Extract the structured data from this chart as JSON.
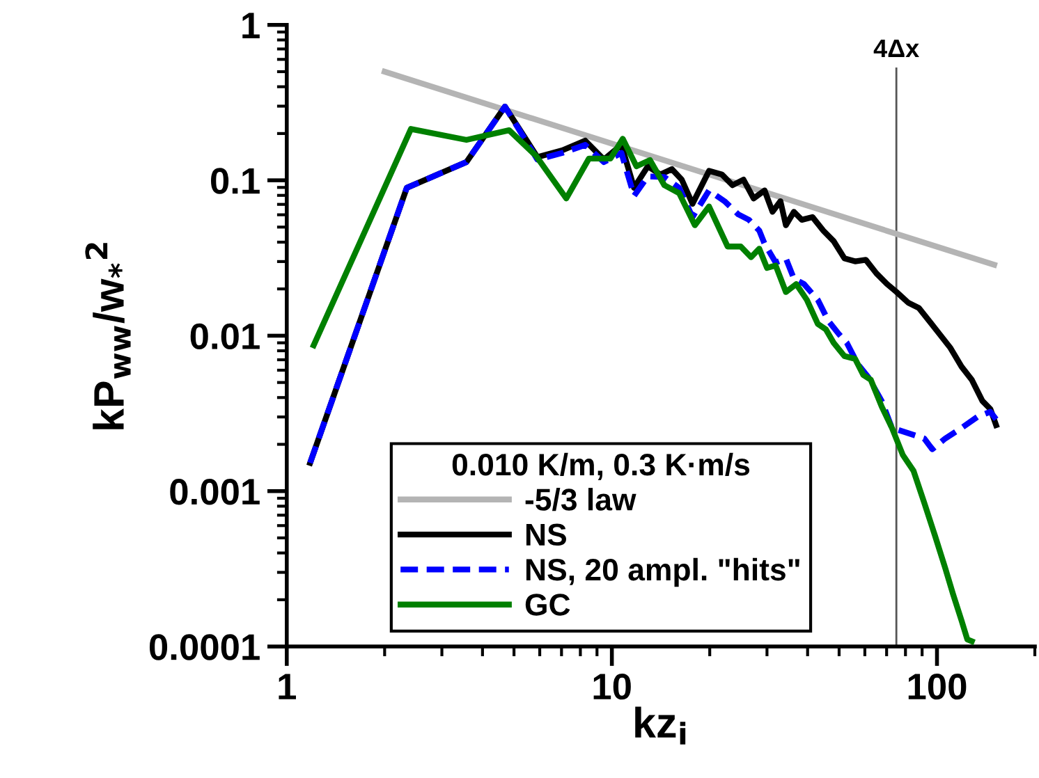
{
  "chart_data": {
    "type": "line",
    "xlabel": "kz$_{i}$",
    "ylabel": "kP$_{ww}$/w$_{*}$$^{2}$",
    "log": "xy",
    "xlim": [
      1,
      200
    ],
    "xticks": [
      1,
      10,
      100
    ],
    "ylim": [
      0.0001,
      1
    ],
    "yticks": [
      0.0001,
      0.001,
      0.01,
      0.1,
      1
    ],
    "grid": false,
    "legend": "bottom",
    "legend_title": "0.010 K/m, 0.3 K·m/s",
    "marker": "none",
    "ref_lines": [
      {
        "axis": "x",
        "value": 75,
        "label": "4Δx",
        "color": "#555555",
        "line_style": "solid"
      }
    ],
    "series": [
      {
        "name": "-5/3 law",
        "color": "#b4b4b4",
        "line_style": "solid",
        "x": [
          2,
          150
        ],
        "values": [
          0.5,
          0.0286
        ]
      },
      {
        "name": "NS",
        "color": "#000000",
        "line_style": "solid",
        "x": [
          1.18,
          2.34,
          3.57,
          4.69,
          5.9,
          7.04,
          8.28,
          9.45,
          10.7,
          11.7,
          12.9,
          14.1,
          15.3,
          16.4,
          17.7,
          19.9,
          21.8,
          23.5,
          25.4,
          27.3,
          29.5,
          31.2,
          33.0,
          34.3,
          36.3,
          38.4,
          41.4,
          44.7,
          48.1,
          51.9,
          56.0,
          60.4,
          65.1,
          70.2,
          75.1,
          81.6,
          87.9,
          94.8,
          102,
          110,
          119,
          128,
          138,
          146,
          152
        ],
        "values": [
          0.00152,
          0.0895,
          0.131,
          0.298,
          0.141,
          0.156,
          0.18,
          0.136,
          0.169,
          0.0895,
          0.123,
          0.109,
          0.118,
          0.101,
          0.0706,
          0.115,
          0.109,
          0.093,
          0.101,
          0.0764,
          0.086,
          0.0627,
          0.0734,
          0.0514,
          0.0627,
          0.0557,
          0.058,
          0.0475,
          0.0406,
          0.0315,
          0.0301,
          0.0308,
          0.0252,
          0.0215,
          0.0191,
          0.0163,
          0.0151,
          0.0124,
          0.0102,
          0.00834,
          0.00632,
          0.0052,
          0.0038,
          0.00337,
          0.00266
        ]
      },
      {
        "name": "NS, 20 ampl. \"hits\"",
        "color": "#0000ff",
        "line_style": "dashed",
        "x": [
          1.18,
          2.34,
          3.57,
          4.69,
          5.9,
          7.04,
          8.28,
          9.45,
          10.7,
          11.7,
          12.9,
          14.5,
          16.1,
          17.7,
          19.9,
          22.2,
          24.5,
          26.4,
          28.4,
          29.5,
          31.9,
          34.3,
          36.3,
          39,
          43,
          46.4,
          50,
          52.8,
          57,
          61.5,
          67.6,
          72.7,
          81.6,
          91.4,
          96.7,
          106,
          119,
          133,
          146,
          152
        ],
        "values": [
          0.00152,
          0.0895,
          0.131,
          0.298,
          0.136,
          0.15,
          0.169,
          0.131,
          0.15,
          0.0794,
          0.106,
          0.105,
          0.0895,
          0.058,
          0.086,
          0.0734,
          0.0603,
          0.0557,
          0.0475,
          0.039,
          0.0296,
          0.0314,
          0.0233,
          0.0215,
          0.017,
          0.0124,
          0.0102,
          0.009,
          0.0066,
          0.0054,
          0.0038,
          0.00255,
          0.00236,
          0.00218,
          0.00186,
          0.00218,
          0.00255,
          0.003,
          0.00324,
          0.0029
        ]
      },
      {
        "name": "GC",
        "color": "#008000",
        "line_style": "solid",
        "x": [
          1.21,
          2.41,
          3.57,
          4.83,
          5.84,
          7.24,
          8.5,
          9.9,
          10.8,
          11.9,
          13.1,
          14.5,
          16.1,
          18.0,
          19.9,
          22.7,
          24.9,
          26.8,
          28.4,
          30,
          31.9,
          34.3,
          36.9,
          39.8,
          43,
          45.5,
          48.1,
          51.9,
          56,
          59.3,
          62.6,
          67.6,
          72.7,
          78.5,
          84.7,
          91.4,
          98.5,
          106,
          112,
          119,
          124,
          128
        ],
        "values": [
          0.00867,
          0.214,
          0.182,
          0.21,
          0.144,
          0.0764,
          0.138,
          0.138,
          0.185,
          0.123,
          0.135,
          0.093,
          0.0827,
          0.0514,
          0.0679,
          0.0375,
          0.0375,
          0.032,
          0.0363,
          0.0273,
          0.0283,
          0.0191,
          0.0215,
          0.017,
          0.0119,
          0.011,
          0.009,
          0.0074,
          0.0071,
          0.0056,
          0.0052,
          0.0035,
          0.00255,
          0.00171,
          0.00135,
          0.00084,
          0.00052,
          0.00032,
          0.000218,
          0.000147,
          0.000111,
          0.000108
        ]
      }
    ]
  }
}
